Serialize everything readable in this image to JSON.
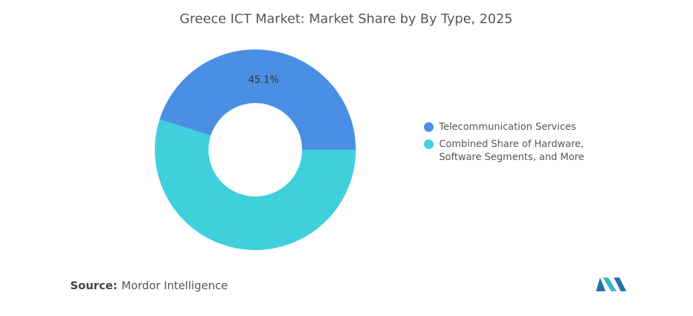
{
  "chart_data": {
    "type": "donut",
    "title": "Greece ICT Market: Market Share by By Type, 2025",
    "categories": [
      "Telecommunication Services",
      "Combined Share of Hardware, Software Segments, and More"
    ],
    "values": [
      45.1,
      54.9
    ],
    "value_labels": [
      "45.1%",
      null
    ],
    "colors": [
      "#4a8fe3",
      "#40d0dc"
    ],
    "legend": "right"
  },
  "source_label": "Source:",
  "source": "Mordor Intelligence"
}
